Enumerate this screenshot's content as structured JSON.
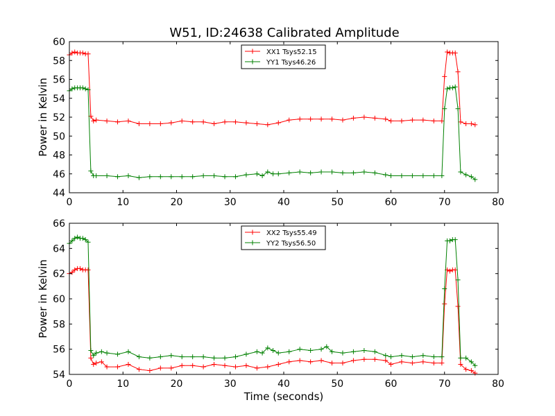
{
  "chart_data": [
    {
      "type": "line",
      "title": "W51, ID:24638 Calibrated Amplitude",
      "xlabel": "",
      "ylabel": "Power in Kelvin",
      "xlim": [
        0,
        80
      ],
      "ylim": [
        44,
        60
      ],
      "xticks": [
        "0",
        "10",
        "20",
        "30",
        "40",
        "50",
        "60",
        "70",
        "80"
      ],
      "yticks": [
        "44",
        "46",
        "48",
        "50",
        "52",
        "54",
        "56",
        "58",
        "60"
      ],
      "legend_position": "upper-center",
      "series": [
        {
          "name": "XX1 Tsys52.15",
          "color": "#ff0000",
          "x": [
            0,
            0.5,
            1,
            1.5,
            2,
            2.5,
            3,
            3.5,
            4,
            4.5,
            5,
            7,
            9,
            11,
            13,
            15,
            17,
            19,
            21,
            23,
            25,
            27,
            29,
            31,
            33,
            35,
            37,
            39,
            41,
            43,
            45,
            47,
            49,
            51,
            53,
            55,
            57,
            59,
            60,
            62,
            64,
            66,
            68,
            69.5,
            70,
            70.5,
            71,
            71.5,
            72,
            72.5,
            73,
            74,
            75,
            75.7
          ],
          "y": [
            58.6,
            58.8,
            58.9,
            58.8,
            58.8,
            58.8,
            58.7,
            58.7,
            52.1,
            51.6,
            51.7,
            51.6,
            51.5,
            51.6,
            51.3,
            51.3,
            51.3,
            51.4,
            51.6,
            51.5,
            51.5,
            51.3,
            51.5,
            51.5,
            51.4,
            51.3,
            51.2,
            51.4,
            51.7,
            51.8,
            51.8,
            51.8,
            51.8,
            51.7,
            51.9,
            52.0,
            51.9,
            51.8,
            51.6,
            51.6,
            51.7,
            51.7,
            51.6,
            51.6,
            56.3,
            58.9,
            58.8,
            58.8,
            58.8,
            56.8,
            51.5,
            51.3,
            51.3,
            51.2
          ]
        },
        {
          "name": "YY1 Tsys46.26",
          "color": "#008000",
          "x": [
            0,
            0.5,
            1,
            1.5,
            2,
            2.5,
            3,
            3.5,
            4,
            4.5,
            5,
            7,
            9,
            11,
            13,
            15,
            17,
            19,
            21,
            23,
            25,
            27,
            29,
            31,
            33,
            35,
            36,
            37,
            38,
            39,
            41,
            43,
            45,
            47,
            49,
            51,
            53,
            55,
            57,
            59,
            60,
            62,
            64,
            66,
            68,
            69.5,
            70,
            70.5,
            71,
            71.5,
            72,
            72.5,
            73,
            74,
            75,
            75.7
          ],
          "y": [
            54.8,
            55.0,
            55.1,
            55.1,
            55.1,
            55.1,
            55.0,
            54.9,
            46.3,
            45.8,
            45.8,
            45.8,
            45.7,
            45.8,
            45.6,
            45.7,
            45.7,
            45.7,
            45.7,
            45.7,
            45.8,
            45.8,
            45.7,
            45.7,
            45.9,
            46.0,
            45.8,
            46.2,
            46.0,
            46.0,
            46.1,
            46.2,
            46.1,
            46.2,
            46.2,
            46.1,
            46.1,
            46.2,
            46.1,
            45.9,
            45.8,
            45.8,
            45.8,
            45.8,
            45.8,
            45.8,
            52.9,
            55.0,
            55.1,
            55.1,
            55.2,
            52.9,
            46.2,
            45.9,
            45.7,
            45.4
          ]
        }
      ]
    },
    {
      "type": "line",
      "title": "",
      "xlabel": "Time (seconds)",
      "ylabel": "Power in Kelvin",
      "xlim": [
        0,
        80
      ],
      "ylim": [
        54,
        66
      ],
      "xticks": [
        "0",
        "10",
        "20",
        "30",
        "40",
        "50",
        "60",
        "70",
        "80"
      ],
      "yticks": [
        "54",
        "56",
        "58",
        "60",
        "62",
        "64",
        "66"
      ],
      "legend_position": "upper-center",
      "series": [
        {
          "name": "XX2 Tsys55.49",
          "color": "#ff0000",
          "x": [
            0,
            0.5,
            1,
            1.5,
            2,
            2.5,
            3,
            3.5,
            4,
            4.5,
            5,
            6,
            7,
            9,
            11,
            13,
            15,
            17,
            19,
            21,
            23,
            25,
            27,
            29,
            31,
            33,
            35,
            37,
            39,
            41,
            43,
            45,
            47,
            49,
            51,
            53,
            55,
            57,
            59,
            60,
            62,
            64,
            66,
            68,
            69.5,
            70,
            70.5,
            71,
            71.5,
            72,
            72.5,
            73,
            74,
            75,
            75.7
          ],
          "y": [
            62.0,
            62.1,
            62.3,
            62.4,
            62.4,
            62.3,
            62.3,
            62.3,
            55.3,
            54.8,
            54.9,
            55.0,
            54.6,
            54.6,
            54.8,
            54.4,
            54.3,
            54.5,
            54.5,
            54.7,
            54.7,
            54.6,
            54.8,
            54.7,
            54.6,
            54.7,
            54.5,
            54.6,
            54.8,
            55.0,
            55.1,
            55.0,
            55.1,
            54.9,
            54.9,
            55.1,
            55.2,
            55.2,
            55.1,
            54.8,
            55.0,
            54.9,
            55.0,
            54.9,
            54.9,
            59.6,
            62.3,
            62.2,
            62.3,
            62.3,
            59.4,
            54.8,
            54.4,
            54.3,
            54.1
          ]
        },
        {
          "name": "YY2 Tsys56.50",
          "color": "#008000",
          "x": [
            0,
            0.5,
            1,
            1.5,
            2,
            2.5,
            3,
            3.5,
            4,
            4.5,
            5,
            6,
            7,
            9,
            11,
            13,
            15,
            17,
            19,
            21,
            23,
            25,
            27,
            29,
            31,
            33,
            35,
            36,
            37,
            38,
            39,
            41,
            43,
            45,
            47,
            48,
            49,
            51,
            53,
            55,
            57,
            59,
            60,
            62,
            64,
            66,
            68,
            69.5,
            70,
            70.5,
            71,
            71.5,
            72,
            72.5,
            73,
            74,
            75,
            75.7
          ],
          "y": [
            64.4,
            64.6,
            64.8,
            64.9,
            64.8,
            64.8,
            64.7,
            64.5,
            55.9,
            55.5,
            55.7,
            55.8,
            55.7,
            55.6,
            55.8,
            55.4,
            55.3,
            55.4,
            55.5,
            55.4,
            55.4,
            55.4,
            55.3,
            55.3,
            55.4,
            55.6,
            55.8,
            55.7,
            56.1,
            55.9,
            55.7,
            55.8,
            56.0,
            55.9,
            56.0,
            56.2,
            55.8,
            55.7,
            55.8,
            55.9,
            55.8,
            55.5,
            55.4,
            55.5,
            55.4,
            55.5,
            55.4,
            55.4,
            60.8,
            64.6,
            64.6,
            64.7,
            64.7,
            61.5,
            55.3,
            55.3,
            55.0,
            54.7
          ]
        }
      ]
    }
  ]
}
